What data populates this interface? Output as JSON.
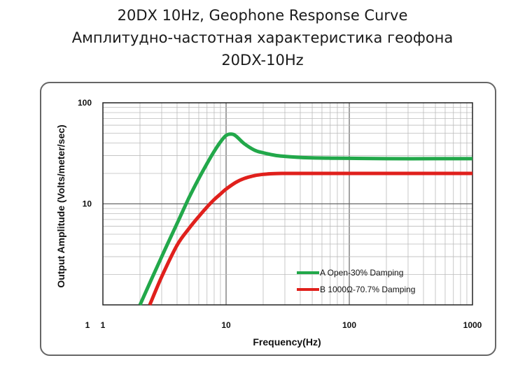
{
  "title": {
    "line1": "20DX 10Hz, Geophone Response Curve",
    "line2": "Амплитудно-частотная характеристика геофона",
    "line3": "20DX-10Hz"
  },
  "chart_data": {
    "type": "line",
    "xlabel": "Frequency(Hz)",
    "ylabel": "Output Amplitude (Volts/meter/sec)",
    "xscale": "log",
    "yscale": "log",
    "xlim": [
      1,
      1000
    ],
    "ylim": [
      1,
      100
    ],
    "grid": true,
    "legend_position": "lower-right",
    "xticks": [
      "1",
      "1",
      "10",
      "100",
      "1000"
    ],
    "yticks": [
      "100",
      "10"
    ],
    "series": [
      {
        "name": "A Open-30% Damping",
        "color": "#22a84a",
        "x": [
          2.0,
          3,
          4,
          5,
          6,
          7,
          8,
          9,
          10,
          11,
          12,
          14,
          17,
          20,
          25,
          30,
          40,
          50,
          70,
          100,
          200,
          500,
          1000
        ],
        "y": [
          1.0,
          3.0,
          6.4,
          11.5,
          17.8,
          25.0,
          33.0,
          41.0,
          47.5,
          49.0,
          47.0,
          39.5,
          34.0,
          32.0,
          30.2,
          29.5,
          28.8,
          28.5,
          28.3,
          28.2,
          28.0,
          28.0,
          28.0
        ]
      },
      {
        "name": "B 1000Ω-70.7% Damping",
        "color": "#e0201c",
        "x": [
          2.4,
          3,
          4,
          5,
          6,
          7,
          8,
          9,
          10,
          12,
          14,
          17,
          20,
          25,
          30,
          40,
          50,
          100,
          200,
          500,
          1000
        ],
        "y": [
          1.0,
          1.9,
          3.9,
          5.7,
          7.5,
          9.3,
          11.0,
          12.5,
          14.0,
          16.3,
          17.8,
          19.0,
          19.6,
          19.9,
          20.0,
          20.0,
          20.0,
          20.0,
          20.0,
          20.0,
          20.0
        ]
      }
    ]
  }
}
